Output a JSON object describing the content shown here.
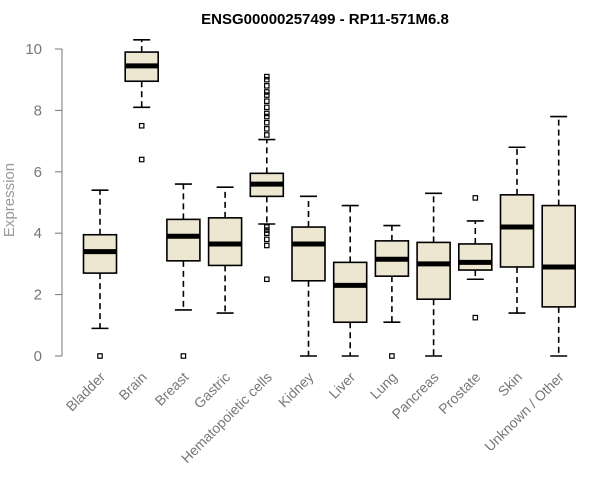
{
  "chart_data": {
    "type": "boxplot",
    "title": "ENSG00000257499 - RP11-571M6.8",
    "xlabel": "",
    "ylabel": "Expression",
    "ylim": [
      0,
      10.5
    ],
    "yticks": [
      0,
      2,
      4,
      6,
      8,
      10
    ],
    "categories": [
      "Bladder",
      "Brain",
      "Breast",
      "Gastric",
      "Hematopoietic cells",
      "Kidney",
      "Liver",
      "Lung",
      "Pancreas",
      "Prostate",
      "Skin",
      "Unknown / Other"
    ],
    "boxes": [
      {
        "category": "Bladder",
        "whisker_low": 0.9,
        "q1": 2.7,
        "median": 3.4,
        "q3": 3.95,
        "whisker_high": 5.4,
        "outliers": [
          0.0
        ]
      },
      {
        "category": "Brain",
        "whisker_low": 8.1,
        "q1": 8.95,
        "median": 9.45,
        "q3": 9.9,
        "whisker_high": 10.3,
        "outliers": [
          7.5,
          6.4
        ]
      },
      {
        "category": "Breast",
        "whisker_low": 1.5,
        "q1": 3.1,
        "median": 3.9,
        "q3": 4.45,
        "whisker_high": 5.6,
        "outliers": [
          0.0
        ]
      },
      {
        "category": "Gastric",
        "whisker_low": 1.4,
        "q1": 2.95,
        "median": 3.65,
        "q3": 4.5,
        "whisker_high": 5.5,
        "outliers": []
      },
      {
        "category": "Hematopoietic cells",
        "whisker_low": 4.3,
        "q1": 5.2,
        "median": 5.6,
        "q3": 5.95,
        "whisker_high": 7.05,
        "outliers": [
          2.5,
          3.6,
          3.8,
          4.0,
          4.1,
          4.2,
          7.2,
          7.4,
          7.6,
          7.8,
          7.9,
          8.1,
          8.3,
          8.5,
          8.6,
          8.8,
          9.0,
          9.1
        ]
      },
      {
        "category": "Kidney",
        "whisker_low": 0.0,
        "q1": 2.45,
        "median": 3.65,
        "q3": 4.2,
        "whisker_high": 5.2,
        "outliers": []
      },
      {
        "category": "Liver",
        "whisker_low": 0.0,
        "q1": 1.1,
        "median": 2.3,
        "q3": 3.05,
        "whisker_high": 4.9,
        "outliers": []
      },
      {
        "category": "Lung",
        "whisker_low": 1.1,
        "q1": 2.6,
        "median": 3.15,
        "q3": 3.75,
        "whisker_high": 4.25,
        "outliers": [
          0.0
        ]
      },
      {
        "category": "Pancreas",
        "whisker_low": 0.0,
        "q1": 1.85,
        "median": 3.0,
        "q3": 3.7,
        "whisker_high": 5.3,
        "outliers": []
      },
      {
        "category": "Prostate",
        "whisker_low": 2.5,
        "q1": 2.8,
        "median": 3.05,
        "q3": 3.65,
        "whisker_high": 4.4,
        "outliers": [
          5.15,
          1.25
        ]
      },
      {
        "category": "Skin",
        "whisker_low": 1.4,
        "q1": 2.9,
        "median": 4.2,
        "q3": 5.25,
        "whisker_high": 6.8,
        "outliers": []
      },
      {
        "category": "Unknown / Other",
        "whisker_low": 0.0,
        "q1": 1.6,
        "median": 2.9,
        "q3": 4.9,
        "whisker_high": 7.8,
        "outliers": []
      }
    ]
  },
  "colors": {
    "box_fill": "#ede7d1",
    "box_stroke": "#000000",
    "axis": "#777777"
  }
}
